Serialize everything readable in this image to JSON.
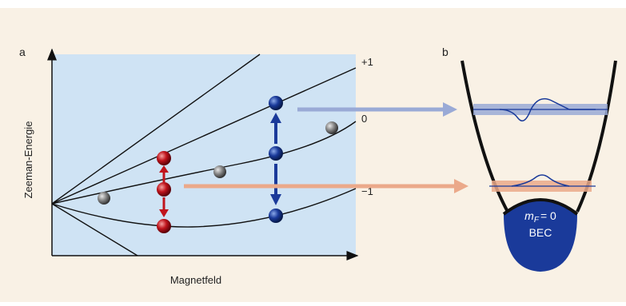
{
  "panel_a": {
    "label": "a",
    "y_axis_label": "Zeeman-Energie",
    "x_axis_label": "Magnetfeld",
    "level_labels": [
      "+1",
      "0",
      "−1"
    ]
  },
  "panel_b": {
    "label": "b",
    "condensate": {
      "symbol": "m",
      "subscript": "F",
      "value": "= 0",
      "name": "BEC"
    }
  }
}
